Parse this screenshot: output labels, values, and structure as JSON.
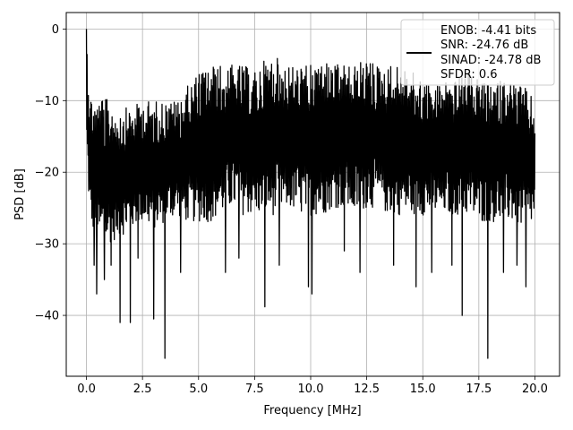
{
  "chart_data": {
    "type": "line",
    "title": "",
    "xlabel": "Frequency [MHz]",
    "ylabel": "PSD [dB]",
    "xlim": [
      -0.9,
      21.1
    ],
    "ylim": [
      -48.5,
      2.3
    ],
    "xticks": [
      0.0,
      2.5,
      5.0,
      7.5,
      10.0,
      12.5,
      15.0,
      17.5,
      20.0
    ],
    "xtick_labels": [
      "0.0",
      "2.5",
      "5.0",
      "7.5",
      "10.0",
      "12.5",
      "15.0",
      "17.5",
      "20.0"
    ],
    "yticks": [
      0,
      -10,
      -20,
      -30,
      -40
    ],
    "ytick_labels": [
      "0",
      "−10",
      "−20",
      "−30",
      "−40"
    ],
    "grid": true,
    "legend_position": "top-right",
    "legend_lines": [
      "ENOB: -4.41 bits",
      "SNR: -24.76 dB",
      "SINAD: -24.78 dB",
      "SFDR: 0.6"
    ],
    "series": [
      {
        "color": "#000000",
        "x_range": [
          0.0,
          20.0
        ],
        "envelope": {
          "x": [
            0.0,
            0.15,
            0.5,
            1.0,
            1.5,
            2.0,
            2.5,
            3.0,
            3.5,
            4.0,
            4.5,
            5.0,
            5.5,
            6.0,
            6.5,
            7.0,
            7.5,
            8.0,
            8.5,
            9.0,
            9.5,
            10.0,
            10.5,
            11.0,
            11.5,
            12.0,
            12.5,
            13.0,
            13.5,
            14.0,
            14.5,
            15.0,
            15.5,
            16.0,
            16.5,
            17.0,
            17.5,
            18.0,
            18.5,
            19.0,
            19.5,
            20.0
          ],
          "upper": [
            0,
            -9,
            -9,
            -10,
            -11,
            -11,
            -10,
            -10,
            -10,
            -10,
            -8,
            -6,
            -5,
            -5,
            -5,
            -5,
            -6,
            -4,
            -4,
            -5,
            -5,
            -5,
            -4,
            -5,
            -5,
            -5,
            -4,
            -5,
            -5,
            -5,
            -6,
            -7,
            -8,
            -7,
            -7,
            -6,
            -7,
            -8,
            -7,
            -7,
            -8,
            -10
          ],
          "lower": [
            -17,
            -27,
            -30,
            -30,
            -29,
            -28,
            -27,
            -28,
            -27,
            -26,
            -27,
            -27,
            -27,
            -26,
            -25,
            -26,
            -26,
            -26,
            -26,
            -25,
            -26,
            -26,
            -26,
            -25,
            -25,
            -26,
            -25,
            -25,
            -26,
            -26,
            -26,
            -26,
            -26,
            -26,
            -26,
            -26,
            -27,
            -27,
            -27,
            -27,
            -28,
            -27
          ]
        },
        "dips": [
          {
            "x": 0.35,
            "y": -33
          },
          {
            "x": 0.45,
            "y": -37
          },
          {
            "x": 0.8,
            "y": -35
          },
          {
            "x": 1.1,
            "y": -33
          },
          {
            "x": 1.5,
            "y": -41
          },
          {
            "x": 1.95,
            "y": -41
          },
          {
            "x": 2.3,
            "y": -32
          },
          {
            "x": 3.0,
            "y": -40.5
          },
          {
            "x": 3.5,
            "y": -46
          },
          {
            "x": 4.2,
            "y": -34
          },
          {
            "x": 6.2,
            "y": -34
          },
          {
            "x": 6.8,
            "y": -32
          },
          {
            "x": 7.95,
            "y": -38.8
          },
          {
            "x": 8.6,
            "y": -33
          },
          {
            "x": 9.9,
            "y": -36
          },
          {
            "x": 10.05,
            "y": -37
          },
          {
            "x": 11.5,
            "y": -31
          },
          {
            "x": 12.2,
            "y": -34
          },
          {
            "x": 13.7,
            "y": -33
          },
          {
            "x": 14.7,
            "y": -36
          },
          {
            "x": 15.4,
            "y": -34
          },
          {
            "x": 16.3,
            "y": -33
          },
          {
            "x": 16.75,
            "y": -40
          },
          {
            "x": 17.9,
            "y": -46
          },
          {
            "x": 18.6,
            "y": -34
          },
          {
            "x": 19.2,
            "y": -33
          },
          {
            "x": 19.6,
            "y": -36
          }
        ]
      }
    ]
  }
}
